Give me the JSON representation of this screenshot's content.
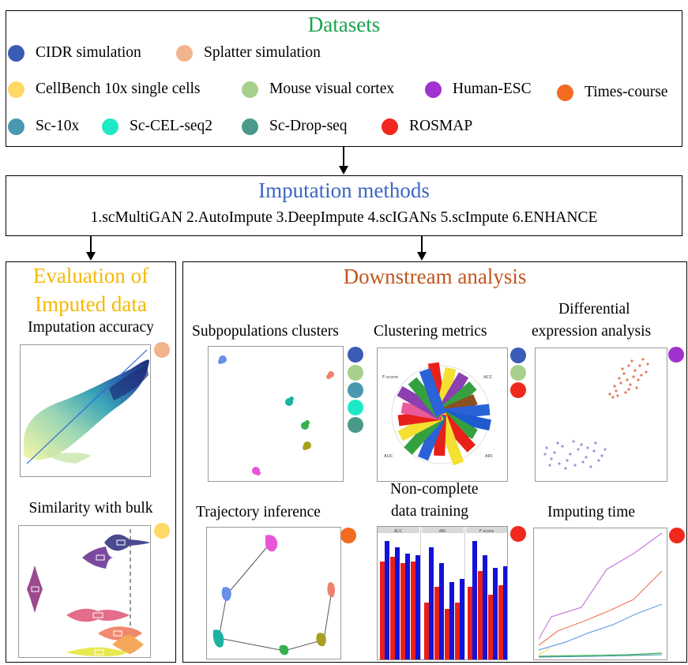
{
  "datasets": {
    "title": "Datasets",
    "items": [
      {
        "label": "CIDR simulation",
        "color": "#3b5bb5"
      },
      {
        "label": "Splatter simulation",
        "color": "#f2b48c"
      },
      {
        "label": "CellBench 10x single cells",
        "color": "#ffd966"
      },
      {
        "label": "Mouse visual cortex",
        "color": "#a8d08d"
      },
      {
        "label": "Human-ESC",
        "color": "#a033d0"
      },
      {
        "label": "Times-course",
        "color": "#f26b21"
      },
      {
        "label": "Sc-10x",
        "color": "#4a98b0"
      },
      {
        "label": "Sc-CEL-seq2",
        "color": "#1de9c6"
      },
      {
        "label": "Sc-Drop-seq",
        "color": "#4a9a8a"
      },
      {
        "label": "ROSMAP",
        "color": "#f0281e"
      }
    ]
  },
  "methods": {
    "title": "Imputation methods",
    "list": "1.scMultiGAN 2.AutoImpute 3.DeepImpute 4.scIGANs 5.scImpute 6.ENHANCE"
  },
  "evaluation": {
    "title_line1": "Evaluation of",
    "title_line2": "Imputed data",
    "accuracy_label": "Imputation accuracy",
    "similarity_label": "Similarity with bulk"
  },
  "downstream": {
    "title": "Downstream analysis",
    "subpop_label": "Subpopulations clusters",
    "clustering_label": "Clustering metrics",
    "de_label_line1": "Differential",
    "de_label_line2": "expression analysis",
    "trajectory_label": "Trajectory inference",
    "noncomplete_line1": "Non-complete",
    "noncomplete_line2": "data training",
    "time_label": "Imputing time",
    "radar_labels": {
      "fscore": "F-score",
      "acc": "ACC",
      "auc": "AUC",
      "ari": "ARI"
    },
    "bar_headers": [
      "ACC",
      "ARI",
      "F-score"
    ]
  },
  "colors": {
    "datasets_title": "#1aa34a",
    "methods_title": "#3b66c4",
    "evaluation_title": "#f5b800",
    "downstream_title": "#c0561e"
  }
}
